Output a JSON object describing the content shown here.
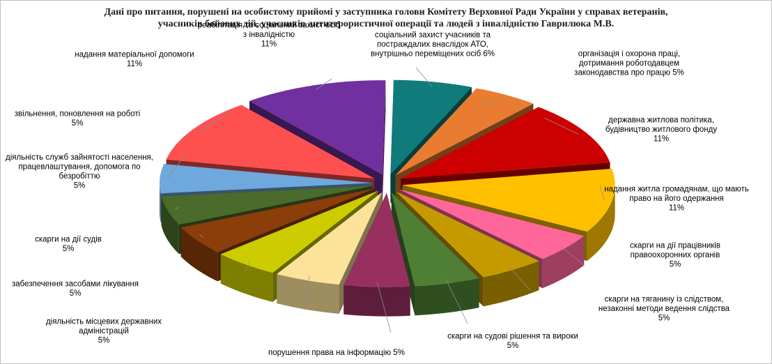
{
  "chart_data": {
    "type": "pie",
    "title_lines": [
      "Дані про питання, порушені  на особистому прийомі у заступника голови Комітету Верховної Ради України у справах ветеранів,",
      "учасників бойових дій, учасників антитерористичної операції та людей з інвалідністю  Гаврилюка М.В."
    ],
    "slices": [
      {
        "label_lines": [
          "соціальний захист учасників та",
          "постраждалих внаслідок АТО,",
          "внутрішньо переміщених осіб 6%"
        ],
        "value": 6,
        "color": "#0f7b7b"
      },
      {
        "label_lines": [
          "організація і охорона праці,",
          "дотримання роботодавцем",
          "законодавства про працю 5%"
        ],
        "value": 5,
        "color": "#ea7c31"
      },
      {
        "label_lines": [
          "державна житлова політика,",
          "будівництво житлового фонду",
          "11%"
        ],
        "value": 11,
        "color": "#cc0000"
      },
      {
        "label_lines": [
          "надання житла громадянам, що мають",
          "право на його одержання",
          "11%"
        ],
        "value": 11,
        "color": "#ffc000"
      },
      {
        "label_lines": [
          "скарги на дії  працівників",
          "правоохоронних органів",
          "5%"
        ],
        "value": 5,
        "color": "#ff6699"
      },
      {
        "label_lines": [
          "скарги на тяганину із слідством,",
          "незаконні методи ведення слідства",
          "5%"
        ],
        "value": 5,
        "color": "#c59a00"
      },
      {
        "label_lines": [
          "скарги на судові рішення та вироки",
          "5%"
        ],
        "value": 5,
        "color": "#4e7f35"
      },
      {
        "label_lines": [
          "порушення права на інформацію 5%"
        ],
        "value": 5,
        "color": "#98305f"
      },
      {
        "label_lines": [
          "діяльність  місцевих державних",
          "адміністрацій",
          "5%"
        ],
        "value": 5,
        "color": "#fde39a"
      },
      {
        "label_lines": [
          "забезпечення засобами лікування",
          "5%"
        ],
        "value": 5,
        "color": "#cccc00"
      },
      {
        "label_lines": [
          "скарги на дії  судів",
          "5%"
        ],
        "value": 5,
        "color": "#8b3d0a"
      },
      {
        "label_lines": [
          "діяльність  служб зайнятості населення,",
          "працевлаштування, допомога по",
          "безробіттю",
          "5%"
        ],
        "value": 5,
        "color": "#4a6b2b"
      },
      {
        "label_lines": [
          "звільнення, поновлення на роботі",
          "5%"
        ],
        "value": 5,
        "color": "#6fa8dc"
      },
      {
        "label_lines": [
          "надання матеріальної допомоги",
          "11%"
        ],
        "value": 11,
        "color": "#ff5050"
      },
      {
        "label_lines": [
          "реабілітація та соціальний захист осіб",
          "з інвалідністю",
          "11%"
        ],
        "value": 11,
        "color": "#7030a0"
      }
    ]
  }
}
